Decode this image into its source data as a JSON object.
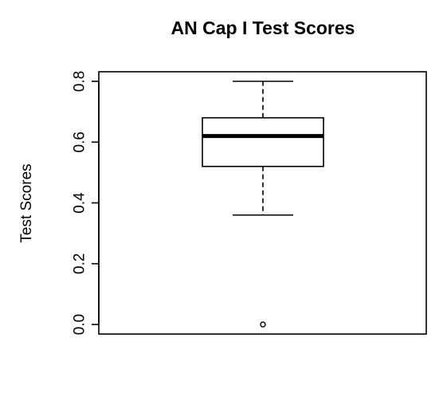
{
  "chart_data": {
    "type": "box",
    "title": "AN Cap I Test Scores",
    "xlabel": "",
    "ylabel": "Test Scores",
    "ylim": [
      0.0,
      0.8
    ],
    "yticks": [
      0.0,
      0.2,
      0.4,
      0.6,
      0.8
    ],
    "ytick_labels": [
      "0.0",
      "0.2",
      "0.4",
      "0.6",
      "0.8"
    ],
    "grid": false,
    "box": {
      "whisker_low": 0.36,
      "q1": 0.52,
      "median": 0.62,
      "q3": 0.68,
      "whisker_high": 0.8,
      "outliers": [
        0.0
      ]
    }
  }
}
